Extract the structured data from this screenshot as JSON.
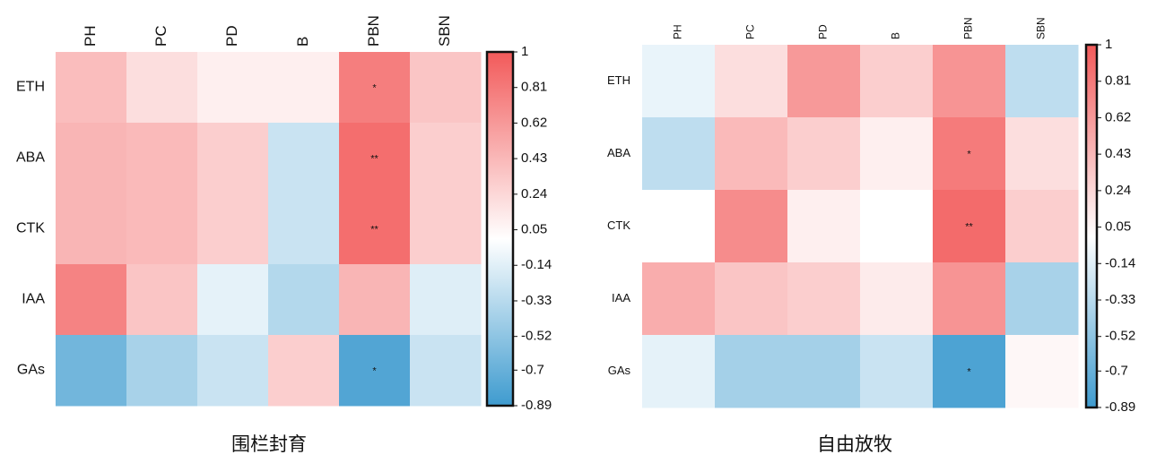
{
  "colors": {
    "scale_negative": "#3E9BCF",
    "scale_zero": "#FFFFFF",
    "scale_positive": "#F25A5A",
    "frame": "#111111"
  },
  "chart_data": [
    {
      "type": "heatmap",
      "caption": "围栏封育",
      "x": [
        "PH",
        "PC",
        "PD",
        "B",
        "PBN",
        "SBN"
      ],
      "y": [
        "ETH",
        "ABA",
        "CTK",
        "IAA",
        "GAs"
      ],
      "values": [
        [
          0.4,
          0.2,
          0.1,
          0.1,
          0.78,
          0.35
        ],
        [
          0.45,
          0.42,
          0.3,
          -0.25,
          0.88,
          0.3
        ],
        [
          0.45,
          0.42,
          0.3,
          -0.25,
          0.88,
          0.3
        ],
        [
          0.75,
          0.35,
          -0.12,
          -0.35,
          0.45,
          -0.15
        ],
        [
          -0.65,
          -0.4,
          -0.25,
          0.3,
          -0.8,
          -0.25
        ]
      ],
      "annotations": [
        {
          "row": 0,
          "col": 4,
          "text": "*"
        },
        {
          "row": 1,
          "col": 4,
          "text": "**"
        },
        {
          "row": 2,
          "col": 4,
          "text": "**"
        },
        {
          "row": 4,
          "col": 4,
          "text": "*"
        }
      ],
      "colorbar": {
        "range": [
          -0.89,
          1
        ],
        "ticks": [
          "1",
          "0.81",
          "0.62",
          "0.43",
          "0.24",
          "0.05",
          "-0.14",
          "-0.33",
          "-0.52",
          "-0.7",
          "-0.89"
        ],
        "tick_values": [
          1,
          0.81,
          0.62,
          0.43,
          0.24,
          0.05,
          -0.14,
          -0.33,
          -0.52,
          -0.7,
          -0.89
        ]
      }
    },
    {
      "type": "heatmap",
      "caption": "自由放牧",
      "x": [
        "PH",
        "PC",
        "PD",
        "B",
        "PBN",
        "SBN"
      ],
      "y": [
        "ETH",
        "ABA",
        "CTK",
        "IAA",
        "GAs"
      ],
      "values": [
        [
          -0.1,
          0.2,
          0.62,
          0.3,
          0.65,
          -0.3
        ],
        [
          -0.3,
          0.42,
          0.3,
          0.1,
          0.8,
          0.2
        ],
        [
          0.0,
          0.7,
          0.1,
          0.0,
          0.9,
          0.3
        ],
        [
          0.5,
          0.35,
          0.3,
          0.12,
          0.65,
          -0.4
        ],
        [
          -0.12,
          -0.42,
          -0.42,
          -0.25,
          -0.82,
          0.05
        ]
      ],
      "annotations": [
        {
          "row": 1,
          "col": 4,
          "text": "*"
        },
        {
          "row": 2,
          "col": 4,
          "text": "**"
        },
        {
          "row": 4,
          "col": 4,
          "text": "*"
        }
      ],
      "colorbar": {
        "range": [
          -0.89,
          1
        ],
        "ticks": [
          "1",
          "0.81",
          "0.62",
          "0.43",
          "0.24",
          "0.05",
          "-0.14",
          "-0.33",
          "-0.52",
          "-0.7",
          "-0.89"
        ],
        "tick_values": [
          1,
          0.81,
          0.62,
          0.43,
          0.24,
          0.05,
          -0.14,
          -0.33,
          -0.52,
          -0.7,
          -0.89
        ]
      }
    }
  ]
}
